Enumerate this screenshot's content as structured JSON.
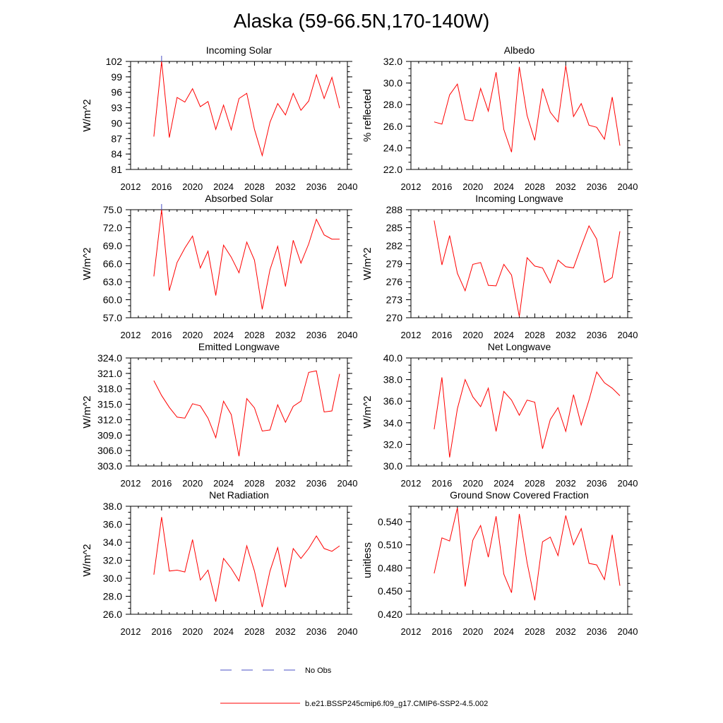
{
  "title": "Alaska (59-66.5N,170-140W)",
  "colors": {
    "model_line": "#ff0000",
    "obs_line": "#4a4fc4",
    "axis": "#000000"
  },
  "legend": {
    "items": [
      {
        "label": "No Obs",
        "style": "dashed",
        "color": "#4a4fc4"
      },
      {
        "label": "b.e21.BSSP245cmip6.f09_g17.CMIP6-SSP2-4.5.002",
        "style": "solid",
        "color": "#ff0000"
      }
    ]
  },
  "chart_data": [
    {
      "type": "line",
      "title": "Incoming Solar",
      "ylabel": "W/m^2",
      "xlim": [
        2012,
        2040
      ],
      "xticks": [
        2012,
        2016,
        2020,
        2024,
        2028,
        2032,
        2036,
        2040
      ],
      "ylim": [
        81,
        102
      ],
      "yticks": [
        81,
        84,
        87,
        90,
        93,
        96,
        99,
        102
      ],
      "ytick_labels": [
        "81",
        "84",
        "87",
        "90",
        "93",
        "96",
        "99",
        "102"
      ],
      "obs_x": 2016,
      "series": [
        {
          "x": [
            2015,
            2016,
            2017,
            2018,
            2019,
            2020,
            2021,
            2022,
            2023,
            2024,
            2025,
            2026,
            2027,
            2028,
            2029,
            2030,
            2031,
            2032,
            2033,
            2034,
            2035,
            2036,
            2037,
            2038,
            2039
          ],
          "values": [
            87.4,
            102.0,
            87.2,
            95.0,
            94.1,
            96.7,
            93.2,
            94.2,
            88.8,
            93.5,
            88.7,
            94.8,
            95.8,
            88.8,
            83.7,
            90.2,
            93.8,
            91.6,
            95.8,
            92.5,
            94.3,
            99.4,
            94.8,
            98.9,
            92.9
          ]
        }
      ]
    },
    {
      "type": "line",
      "title": "Albedo",
      "ylabel": "% reflected",
      "xlim": [
        2012,
        2040
      ],
      "xticks": [
        2012,
        2016,
        2020,
        2024,
        2028,
        2032,
        2036,
        2040
      ],
      "ylim": [
        22.0,
        32.0
      ],
      "yticks": [
        22,
        24,
        26,
        28,
        30,
        32
      ],
      "ytick_labels": [
        "22.0",
        "24.0",
        "26.0",
        "28.0",
        "30.0",
        "32.0"
      ],
      "series": [
        {
          "x": [
            2015,
            2016,
            2017,
            2018,
            2019,
            2020,
            2021,
            2022,
            2023,
            2024,
            2025,
            2026,
            2027,
            2028,
            2029,
            2030,
            2031,
            2032,
            2033,
            2034,
            2035,
            2036,
            2037,
            2038,
            2039
          ],
          "values": [
            26.4,
            26.2,
            28.9,
            29.9,
            26.6,
            26.5,
            29.5,
            27.4,
            31.0,
            25.7,
            23.6,
            31.5,
            27.0,
            24.7,
            29.5,
            27.3,
            26.4,
            31.6,
            26.9,
            28.1,
            26.1,
            25.9,
            24.8,
            28.7,
            24.2
          ]
        }
      ]
    },
    {
      "type": "line",
      "title": "Absorbed Solar",
      "ylabel": "W/m^2",
      "xlim": [
        2012,
        2040
      ],
      "xticks": [
        2012,
        2016,
        2020,
        2024,
        2028,
        2032,
        2036,
        2040
      ],
      "ylim": [
        57.0,
        75.0
      ],
      "yticks": [
        57,
        60,
        63,
        66,
        69,
        72,
        75
      ],
      "ytick_labels": [
        "57.0",
        "60.0",
        "63.0",
        "66.0",
        "69.0",
        "72.0",
        "75.0"
      ],
      "obs_x": 2016,
      "series": [
        {
          "x": [
            2015,
            2016,
            2017,
            2018,
            2019,
            2020,
            2021,
            2022,
            2023,
            2024,
            2025,
            2026,
            2027,
            2028,
            2029,
            2030,
            2031,
            2032,
            2033,
            2034,
            2035,
            2036,
            2037,
            2038,
            2039
          ],
          "values": [
            63.9,
            75.0,
            61.5,
            66.2,
            68.6,
            70.6,
            65.3,
            68.1,
            60.7,
            69.1,
            67.1,
            64.5,
            69.6,
            66.6,
            58.4,
            65.0,
            68.9,
            62.2,
            69.9,
            66.1,
            69.3,
            73.4,
            70.8,
            70.1,
            70.1
          ]
        }
      ]
    },
    {
      "type": "line",
      "title": "Incoming Longwave",
      "ylabel": "W/m^2",
      "xlim": [
        2012,
        2040
      ],
      "xticks": [
        2012,
        2016,
        2020,
        2024,
        2028,
        2032,
        2036,
        2040
      ],
      "ylim": [
        270,
        288
      ],
      "yticks": [
        270,
        273,
        276,
        279,
        282,
        285,
        288
      ],
      "ytick_labels": [
        "270",
        "273",
        "276",
        "279",
        "282",
        "285",
        "288"
      ],
      "series": [
        {
          "x": [
            2015,
            2016,
            2017,
            2018,
            2019,
            2020,
            2021,
            2022,
            2023,
            2024,
            2025,
            2026,
            2027,
            2028,
            2029,
            2030,
            2031,
            2032,
            2033,
            2034,
            2035,
            2036,
            2037,
            2038,
            2039
          ],
          "values": [
            286.2,
            278.8,
            283.7,
            277.4,
            274.5,
            278.9,
            279.2,
            275.4,
            275.3,
            278.9,
            277.1,
            270.2,
            280.0,
            278.6,
            278.3,
            275.8,
            279.6,
            278.5,
            278.3,
            281.9,
            285.3,
            283.1,
            275.9,
            276.7,
            284.4
          ]
        }
      ]
    },
    {
      "type": "line",
      "title": "Emitted Longwave",
      "ylabel": "W/m^2",
      "xlim": [
        2012,
        2040
      ],
      "xticks": [
        2012,
        2016,
        2020,
        2024,
        2028,
        2032,
        2036,
        2040
      ],
      "ylim": [
        303.0,
        324.0
      ],
      "yticks": [
        303,
        306,
        309,
        312,
        315,
        318,
        321,
        324
      ],
      "ytick_labels": [
        "303.0",
        "306.0",
        "309.0",
        "312.0",
        "315.0",
        "318.0",
        "321.0",
        "324.0"
      ],
      "series": [
        {
          "x": [
            2015,
            2016,
            2017,
            2018,
            2019,
            2020,
            2021,
            2022,
            2023,
            2024,
            2025,
            2026,
            2027,
            2028,
            2029,
            2030,
            2031,
            2032,
            2033,
            2034,
            2035,
            2036,
            2037,
            2038,
            2039
          ],
          "values": [
            319.6,
            316.7,
            314.4,
            312.5,
            312.3,
            315.1,
            314.7,
            312.3,
            308.5,
            315.6,
            313.0,
            304.9,
            316.1,
            314.3,
            309.8,
            310.0,
            314.9,
            311.5,
            314.6,
            315.6,
            321.2,
            321.5,
            313.5,
            313.7,
            320.9
          ]
        }
      ]
    },
    {
      "type": "line",
      "title": "Net Longwave",
      "ylabel": "W/m^2",
      "xlim": [
        2012,
        2040
      ],
      "xticks": [
        2012,
        2016,
        2020,
        2024,
        2028,
        2032,
        2036,
        2040
      ],
      "ylim": [
        30.0,
        40.0
      ],
      "yticks": [
        30,
        32,
        34,
        36,
        38,
        40
      ],
      "ytick_labels": [
        "30.0",
        "32.0",
        "34.0",
        "36.0",
        "38.0",
        "40.0"
      ],
      "series": [
        {
          "x": [
            2015,
            2016,
            2017,
            2018,
            2019,
            2020,
            2021,
            2022,
            2023,
            2024,
            2025,
            2026,
            2027,
            2028,
            2029,
            2030,
            2031,
            2032,
            2033,
            2034,
            2035,
            2036,
            2037,
            2038,
            2039
          ],
          "values": [
            33.4,
            38.2,
            30.8,
            35.3,
            38.0,
            36.4,
            35.5,
            37.2,
            33.2,
            36.9,
            36.1,
            34.7,
            36.1,
            35.9,
            31.6,
            34.3,
            35.4,
            33.2,
            36.6,
            33.8,
            36.1,
            38.7,
            37.7,
            37.2,
            36.5
          ]
        }
      ]
    },
    {
      "type": "line",
      "title": "Net Radiation",
      "ylabel": "W/m^2",
      "xlim": [
        2012,
        2040
      ],
      "xticks": [
        2012,
        2016,
        2020,
        2024,
        2028,
        2032,
        2036,
        2040
      ],
      "ylim": [
        26.0,
        38.0
      ],
      "yticks": [
        26,
        28,
        30,
        32,
        34,
        36,
        38
      ],
      "ytick_labels": [
        "26.0",
        "28.0",
        "30.0",
        "32.0",
        "34.0",
        "36.0",
        "38.0"
      ],
      "series": [
        {
          "x": [
            2015,
            2016,
            2017,
            2018,
            2019,
            2020,
            2021,
            2022,
            2023,
            2024,
            2025,
            2026,
            2027,
            2028,
            2029,
            2030,
            2031,
            2032,
            2033,
            2034,
            2035,
            2036,
            2037,
            2038,
            2039
          ],
          "values": [
            30.4,
            36.8,
            30.8,
            30.9,
            30.7,
            34.3,
            29.8,
            30.9,
            27.4,
            32.2,
            31.1,
            29.7,
            33.6,
            30.8,
            26.8,
            30.8,
            33.4,
            29.0,
            33.3,
            32.2,
            33.3,
            34.7,
            33.3,
            33.0,
            33.6
          ]
        }
      ]
    },
    {
      "type": "line",
      "title": "Ground Snow Covered Fraction",
      "ylabel": "unitless",
      "xlim": [
        2012,
        2040
      ],
      "xticks": [
        2012,
        2016,
        2020,
        2024,
        2028,
        2032,
        2036,
        2040
      ],
      "ylim": [
        0.42,
        0.56
      ],
      "yticks": [
        0.42,
        0.45,
        0.48,
        0.51,
        0.54
      ],
      "ytick_labels": [
        "0.420",
        "0.450",
        "0.480",
        "0.510",
        "0.540"
      ],
      "series": [
        {
          "x": [
            2015,
            2016,
            2017,
            2018,
            2019,
            2020,
            2021,
            2022,
            2023,
            2024,
            2025,
            2026,
            2027,
            2028,
            2029,
            2030,
            2031,
            2032,
            2033,
            2034,
            2035,
            2036,
            2037,
            2038,
            2039
          ],
          "values": [
            0.473,
            0.519,
            0.515,
            0.558,
            0.456,
            0.516,
            0.535,
            0.494,
            0.547,
            0.472,
            0.448,
            0.55,
            0.487,
            0.438,
            0.514,
            0.52,
            0.496,
            0.548,
            0.51,
            0.531,
            0.486,
            0.484,
            0.465,
            0.523,
            0.457
          ]
        }
      ]
    }
  ]
}
